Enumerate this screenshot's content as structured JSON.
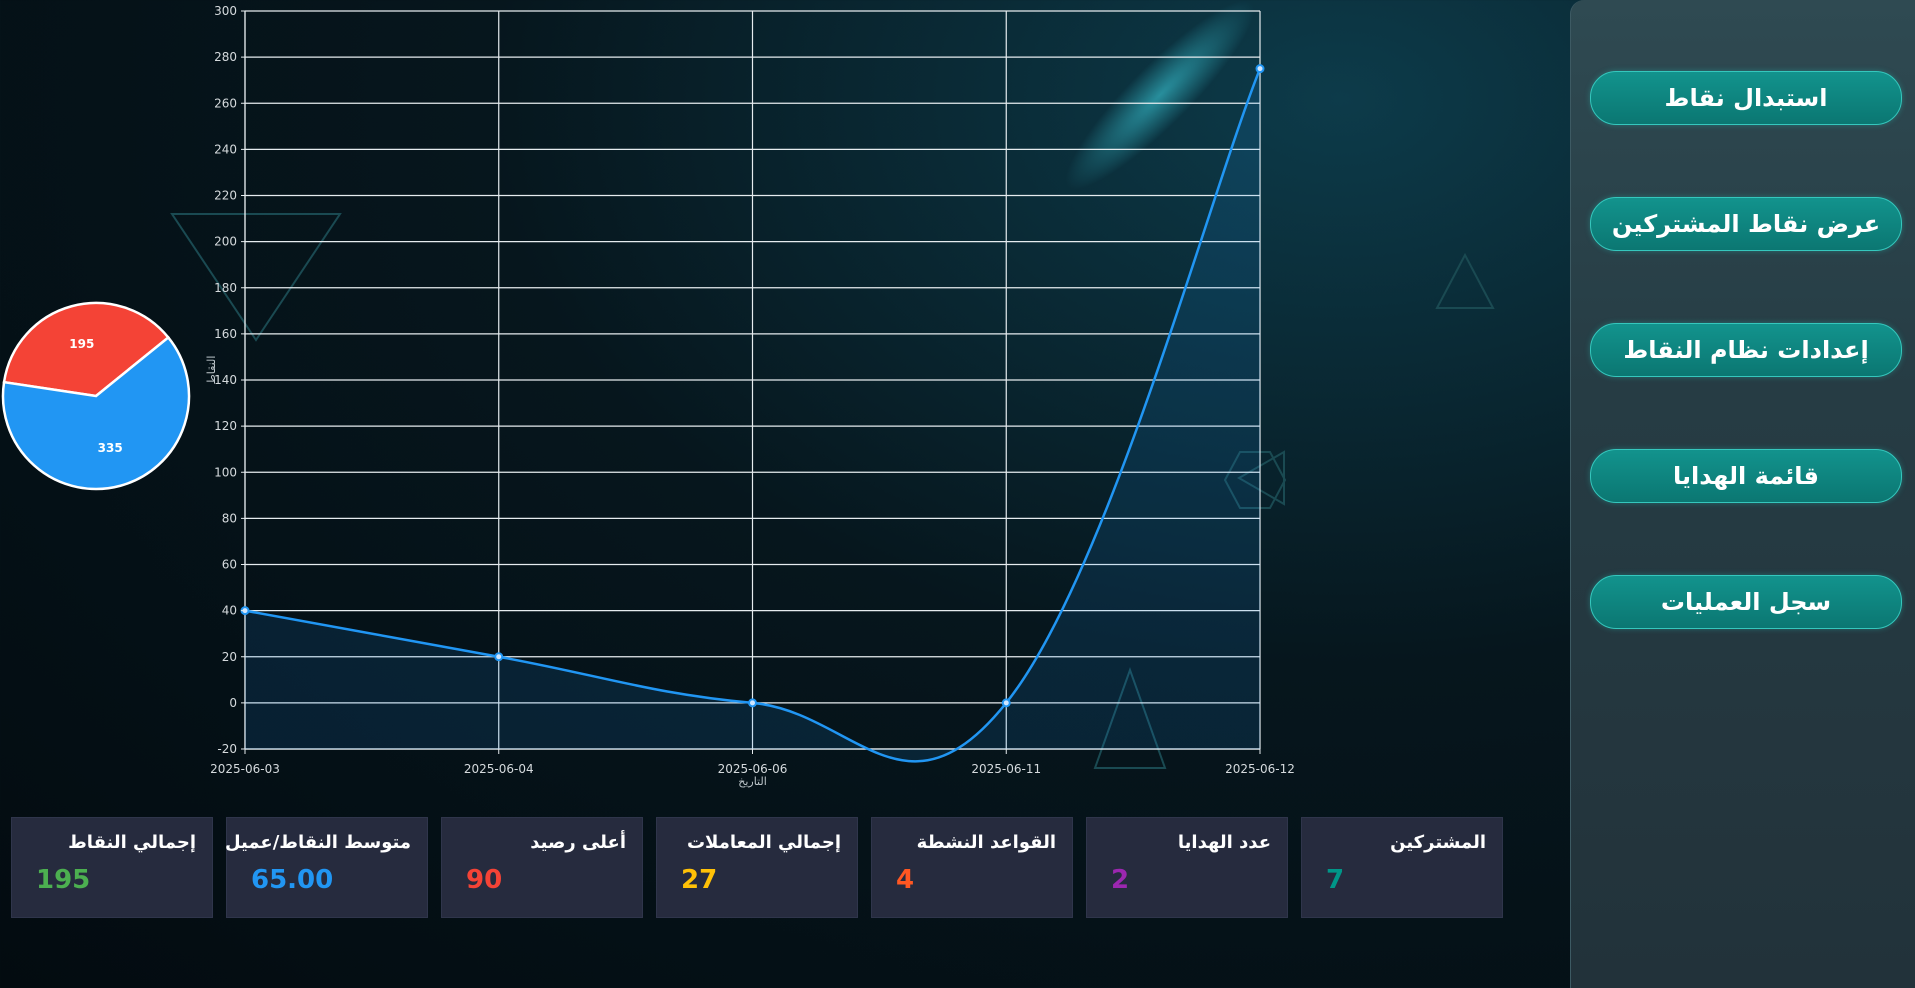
{
  "sidebar": {
    "items": [
      {
        "label": "استبدال نقاط"
      },
      {
        "label": "عرض نقاط المشتركين"
      },
      {
        "label": "إعدادات نظام النقاط"
      },
      {
        "label": "قائمة الهدايا"
      },
      {
        "label": "سجل العمليات"
      }
    ]
  },
  "stats": [
    {
      "label": "إجمالي النقاط",
      "value": "195",
      "color": "#4caf50"
    },
    {
      "label": "متوسط النقاط/عميل",
      "value": "65.00",
      "color": "#2196f3"
    },
    {
      "label": "أعلى رصيد",
      "value": "90",
      "color": "#f44336"
    },
    {
      "label": "إجمالي المعاملات",
      "value": "27",
      "color": "#ffc107"
    },
    {
      "label": "القواعد النشطة",
      "value": "4",
      "color": "#ff5722"
    },
    {
      "label": "عدد الهدايا",
      "value": "2",
      "color": "#9c27b0"
    },
    {
      "label": "المشتركين",
      "value": "7",
      "color": "#009688"
    }
  ],
  "chart_data": [
    {
      "type": "line",
      "xlabel": "التاريخ",
      "ylabel": "النقاط",
      "x": [
        "2025-06-03",
        "2025-06-04",
        "2025-06-06",
        "2025-06-11",
        "2025-06-12"
      ],
      "values": [
        40,
        20,
        0,
        0,
        275
      ],
      "ylim": [
        -20,
        300
      ],
      "yticks": [
        -20,
        0,
        20,
        40,
        60,
        80,
        100,
        120,
        140,
        160,
        180,
        200,
        220,
        240,
        260,
        280,
        300
      ],
      "grid": true,
      "color": "#2196f3"
    },
    {
      "type": "pie",
      "slices": [
        {
          "value": 195,
          "label": "195",
          "color": "#f44336"
        },
        {
          "value": 335,
          "label": "335",
          "color": "#2196f3"
        }
      ]
    }
  ]
}
